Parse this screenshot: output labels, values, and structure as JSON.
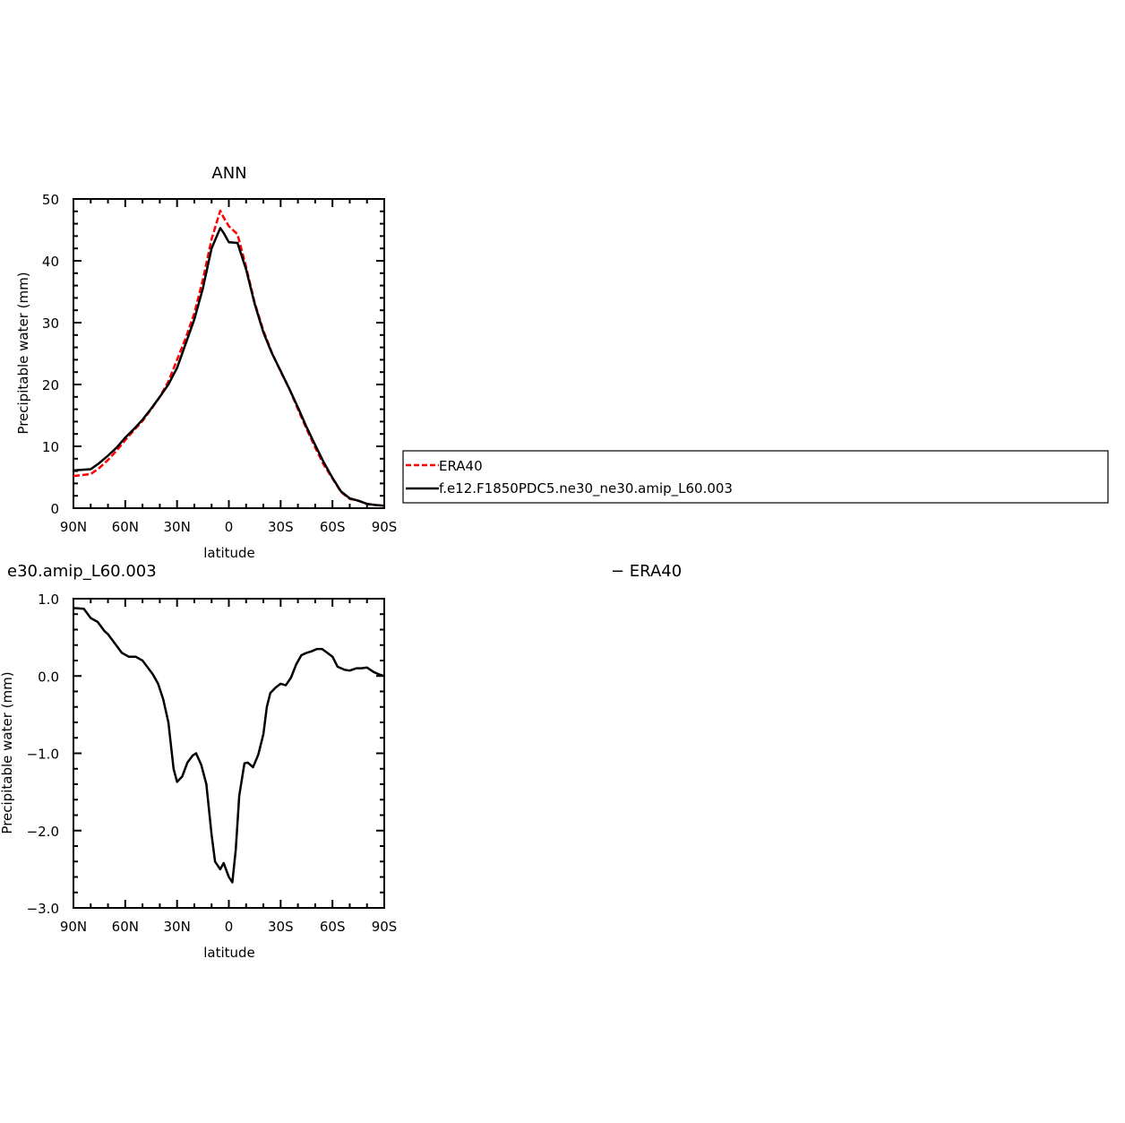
{
  "colors": {
    "obs": "#ff0000",
    "model": "#000000",
    "axis": "#000000"
  },
  "legend": {
    "entries": [
      {
        "label": "ERA40",
        "color": "#ff0000",
        "dash": true
      },
      {
        "label": "f.e12.F1850PDC5.ne30_ne30.amip_L60.003",
        "color": "#000000",
        "dash": false
      }
    ]
  },
  "chart_data": [
    {
      "type": "line",
      "title": "ANN",
      "xlabel": "latitude",
      "ylabel": "Precipitable water (mm)",
      "xlim": [
        90,
        -90
      ],
      "ylim": [
        0,
        50
      ],
      "xticks": [
        90,
        60,
        30,
        0,
        -30,
        -60,
        -90
      ],
      "xtick_labels": [
        "90N",
        "60N",
        "30N",
        "0",
        "30S",
        "60S",
        "90S"
      ],
      "yticks": [
        0,
        10,
        20,
        30,
        40,
        50
      ],
      "ytick_labels": [
        "0",
        "10",
        "20",
        "30",
        "40",
        "50"
      ],
      "x": [
        90,
        80,
        75,
        70,
        65,
        60,
        55,
        50,
        45,
        40,
        35,
        30,
        25,
        20,
        15,
        10,
        5,
        3,
        0,
        -5,
        -10,
        -15,
        -20,
        -25,
        -30,
        -35,
        -40,
        -45,
        -50,
        -55,
        -60,
        -65,
        -70,
        -75,
        -80,
        -85,
        -90
      ],
      "series": [
        {
          "name": "ERA40",
          "values": [
            5.2,
            5.5,
            6.5,
            7.8,
            9.3,
            11.0,
            12.6,
            14.1,
            16.0,
            18.0,
            20.5,
            24.0,
            27.5,
            31.5,
            37.0,
            43.5,
            48.1,
            47.0,
            45.6,
            44.3,
            39.0,
            33.2,
            28.7,
            25.1,
            22.1,
            19.3,
            16.0,
            12.8,
            9.8,
            7.0,
            4.8,
            2.6,
            1.5,
            1.2,
            0.7,
            0.5,
            0.4
          ]
        },
        {
          "name": "f.e12.F1850PDC5.ne30_ne30.amip_L60.003",
          "values": [
            6.1,
            6.3,
            7.3,
            8.5,
            9.8,
            11.4,
            12.8,
            14.3,
            16.1,
            18.0,
            20.0,
            22.7,
            26.6,
            30.5,
            35.6,
            42.0,
            45.3,
            44.5,
            43.0,
            42.9,
            38.6,
            33.0,
            28.4,
            25.0,
            22.2,
            19.3,
            16.3,
            13.1,
            10.2,
            7.4,
            4.9,
            2.7,
            1.6,
            1.2,
            0.7,
            0.5,
            0.4
          ]
        }
      ]
    },
    {
      "type": "line",
      "title": "e30.amip_L60.003",
      "title_right": "− ERA40",
      "xlabel": "latitude",
      "ylabel": "Precipitable water (mm)",
      "xlim": [
        90,
        -90
      ],
      "ylim": [
        -3.0,
        1.0
      ],
      "xticks": [
        90,
        60,
        30,
        0,
        -30,
        -60,
        -90
      ],
      "xtick_labels": [
        "90N",
        "60N",
        "30N",
        "0",
        "30S",
        "60S",
        "90S"
      ],
      "yticks": [
        1.0,
        0.0,
        -1.0,
        -2.0,
        -3.0
      ],
      "ytick_labels": [
        "1.0",
        "0.0",
        "−1.0",
        "−2.0",
        "−3.0"
      ],
      "x": [
        90,
        84,
        80,
        76,
        72,
        70,
        66,
        62,
        58,
        54,
        50,
        46,
        44,
        41,
        38,
        35,
        32,
        30,
        27,
        24,
        21,
        19,
        16,
        13,
        10,
        8,
        5,
        3,
        0,
        -2,
        -4,
        -6,
        -9,
        -11,
        -14,
        -17,
        -20,
        -22,
        -24,
        -27,
        -30,
        -33,
        -36,
        -39,
        -42,
        -45,
        -48,
        -51,
        -54,
        -57,
        -60,
        -63,
        -67,
        -70,
        -74,
        -77,
        -80,
        -84,
        -87,
        -90
      ],
      "series": [
        {
          "name": "",
          "values": [
            0.88,
            0.87,
            0.75,
            0.7,
            0.58,
            0.54,
            0.42,
            0.3,
            0.25,
            0.25,
            0.2,
            0.08,
            0.02,
            -0.1,
            -0.3,
            -0.6,
            -1.2,
            -1.37,
            -1.3,
            -1.12,
            -1.03,
            -1.0,
            -1.15,
            -1.4,
            -2.05,
            -2.4,
            -2.5,
            -2.42,
            -2.6,
            -2.67,
            -2.25,
            -1.55,
            -1.13,
            -1.12,
            -1.18,
            -1.02,
            -0.75,
            -0.4,
            -0.22,
            -0.15,
            -0.1,
            -0.12,
            -0.02,
            0.15,
            0.27,
            0.3,
            0.32,
            0.35,
            0.35,
            0.3,
            0.25,
            0.12,
            0.08,
            0.07,
            0.1,
            0.1,
            0.11,
            0.05,
            0.02,
            0.0
          ]
        }
      ]
    }
  ]
}
